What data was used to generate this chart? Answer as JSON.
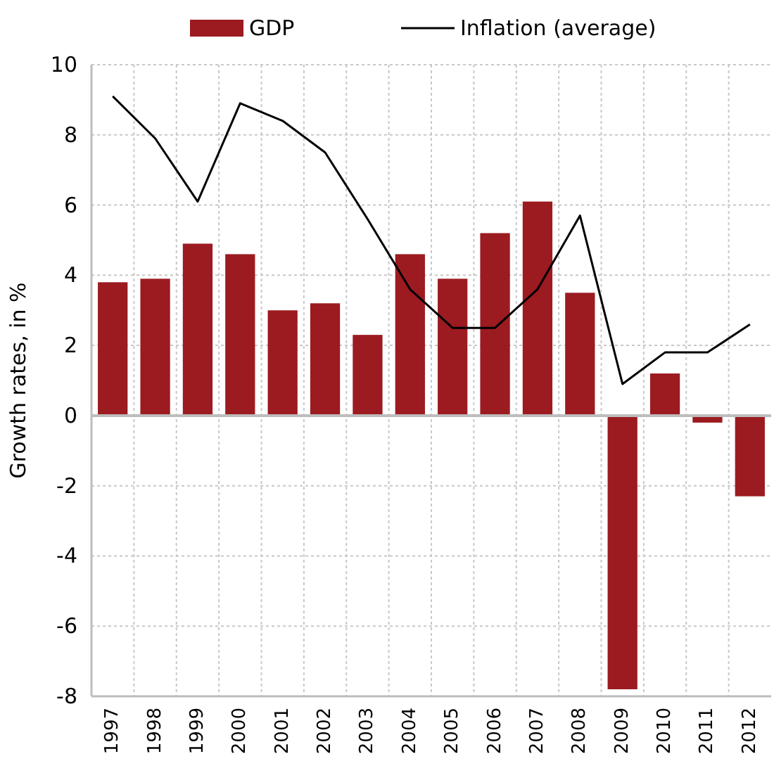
{
  "chart_data": {
    "type": "bar",
    "ylabel": "Growth rates, in %",
    "categories": [
      "1997",
      "1998",
      "1999",
      "2000",
      "2001",
      "2002",
      "2003",
      "2004",
      "2005",
      "2006",
      "2007",
      "2008",
      "2009",
      "2010",
      "2011",
      "2012"
    ],
    "series": [
      {
        "name": "GDP",
        "color": "#9b1b20",
        "values": [
          3.8,
          3.9,
          4.9,
          4.6,
          3.0,
          3.2,
          2.3,
          4.6,
          3.9,
          5.2,
          6.1,
          3.5,
          -7.8,
          1.2,
          -0.2,
          -2.3
        ]
      },
      {
        "name": "Inflation (average)",
        "type": "line",
        "color": "#000000",
        "values": [
          9.1,
          7.9,
          6.1,
          8.9,
          8.4,
          7.5,
          5.6,
          3.6,
          2.5,
          2.5,
          3.6,
          5.7,
          0.9,
          1.8,
          1.8,
          2.6
        ]
      }
    ],
    "ylim": [
      -8,
      10
    ],
    "yticks": [
      -8,
      -6,
      -4,
      -2,
      0,
      2,
      4,
      6,
      8,
      10
    ],
    "grid": true,
    "legend": "top",
    "line_style": "solid"
  }
}
